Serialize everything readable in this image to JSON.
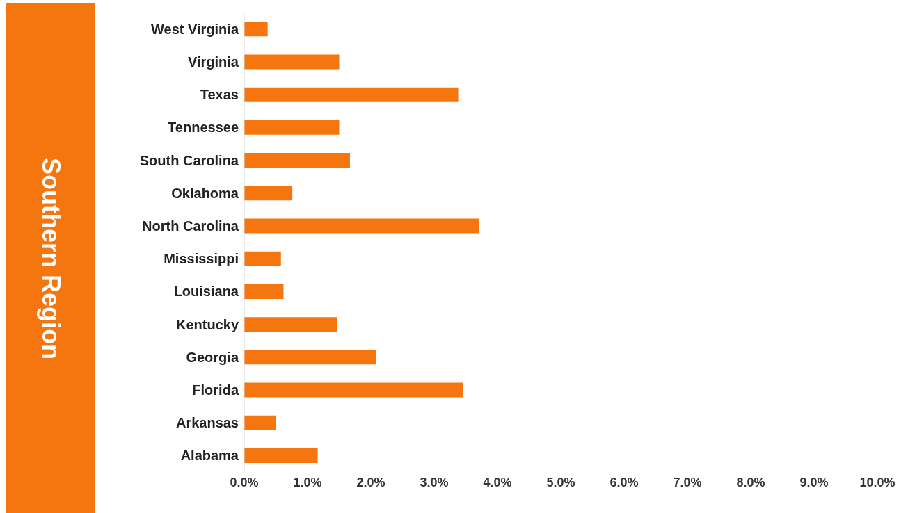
{
  "chart_data": {
    "type": "bar",
    "orientation": "horizontal",
    "title": "Southern Region",
    "categories": [
      "West Virginia",
      "Virginia",
      "Texas",
      "Tennessee",
      "South Carolina",
      "Oklahoma",
      "North Carolina",
      "Mississippi",
      "Louisiana",
      "Kentucky",
      "Georgia",
      "Florida",
      "Arkansas",
      "Alabama"
    ],
    "values": [
      0.37,
      1.5,
      3.38,
      1.5,
      1.67,
      0.76,
      3.71,
      0.58,
      0.62,
      1.47,
      2.08,
      3.46,
      0.5,
      1.16
    ],
    "color": "#f5760f",
    "xlim": [
      0,
      10
    ],
    "xticks": [
      {
        "value": 0,
        "label": "0.0%"
      },
      {
        "value": 1,
        "label": "1.0%"
      },
      {
        "value": 2,
        "label": "2.0%"
      },
      {
        "value": 3,
        "label": "3.0%"
      },
      {
        "value": 4,
        "label": "4.0%"
      },
      {
        "value": 5,
        "label": "5.0%"
      },
      {
        "value": 6,
        "label": "6.0%"
      },
      {
        "value": 7,
        "label": "7.0%"
      },
      {
        "value": 8,
        "label": "8.0%"
      },
      {
        "value": 9,
        "label": "9.0%"
      },
      {
        "value": 10,
        "label": "10.0%"
      }
    ],
    "grid": false,
    "legend": false
  }
}
